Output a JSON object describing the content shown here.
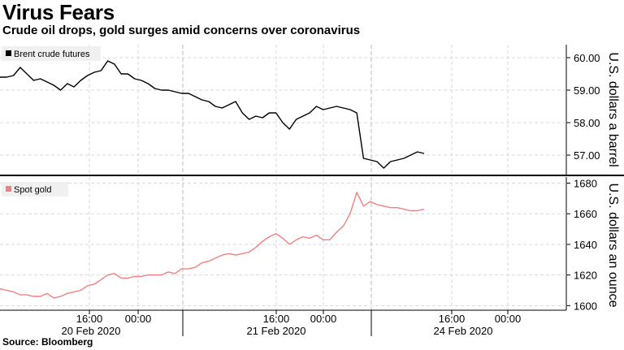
{
  "header": {
    "title": "Virus Fears",
    "subtitle": "Crude oil drops, gold surges amid concerns over coronavirus"
  },
  "footer": {
    "source": "Source: Bloomberg"
  },
  "colors": {
    "brent": "#000000",
    "gold": "#f08080",
    "grid": "#d9d9d9",
    "axis": "#000000"
  },
  "chart_data": [
    {
      "type": "line",
      "series": [
        {
          "name": "Brent crude futures",
          "x": [
            0,
            1,
            2,
            3,
            4,
            5,
            6,
            7,
            8,
            9,
            10,
            11,
            12,
            13,
            14,
            15,
            16,
            17,
            18,
            19,
            20,
            21,
            22,
            23,
            24,
            25,
            26,
            27,
            28,
            29,
            30,
            31,
            32,
            33,
            34,
            35,
            36,
            37,
            38,
            39,
            40,
            41,
            42,
            43,
            44,
            45,
            46,
            47,
            48,
            49,
            50,
            51,
            52,
            53,
            54,
            55,
            56,
            57,
            58,
            59,
            60,
            61,
            62,
            63
          ],
          "values": [
            59.4,
            59.4,
            59.45,
            59.7,
            59.5,
            59.3,
            59.35,
            59.25,
            59.15,
            59.0,
            59.2,
            59.1,
            59.3,
            59.45,
            59.55,
            59.6,
            59.9,
            59.8,
            59.5,
            59.5,
            59.35,
            59.3,
            59.2,
            59.05,
            59.0,
            59.0,
            58.95,
            58.9,
            58.9,
            58.8,
            58.7,
            58.65,
            58.5,
            58.45,
            58.55,
            58.65,
            58.3,
            58.1,
            58.2,
            58.15,
            58.3,
            58.3,
            58.0,
            57.8,
            58.1,
            58.2,
            58.3,
            58.5,
            58.4,
            58.45,
            58.5,
            58.45,
            58.4,
            58.3,
            56.9,
            56.85,
            56.8,
            56.6,
            56.8,
            56.85,
            56.9,
            57.0,
            57.1,
            57.05
          ]
        }
      ],
      "ylabel": "U.S. dollars a barrel",
      "y_ticks": [
        "57.00",
        "58.00",
        "59.00",
        "60.00"
      ],
      "ylim": [
        56.4,
        60.4
      ],
      "grid": true,
      "legend_position": "top-left"
    },
    {
      "type": "line",
      "series": [
        {
          "name": "Spot gold",
          "x": [
            0,
            1,
            2,
            3,
            4,
            5,
            6,
            7,
            8,
            9,
            10,
            11,
            12,
            13,
            14,
            15,
            16,
            17,
            18,
            19,
            20,
            21,
            22,
            23,
            24,
            25,
            26,
            27,
            28,
            29,
            30,
            31,
            32,
            33,
            34,
            35,
            36,
            37,
            38,
            39,
            40,
            41,
            42,
            43,
            44,
            45,
            46,
            47,
            48,
            49,
            50,
            51,
            52,
            53,
            54,
            55,
            56,
            57,
            58,
            59,
            60,
            61,
            62,
            63
          ],
          "values": [
            1611,
            1610,
            1609,
            1607,
            1607,
            1606,
            1606,
            1608,
            1605,
            1606,
            1608,
            1609,
            1610,
            1613,
            1614,
            1617,
            1620,
            1621,
            1618,
            1618,
            1619,
            1619,
            1620,
            1620,
            1620,
            1622,
            1621,
            1624,
            1624,
            1625,
            1628,
            1629,
            1631,
            1633,
            1634,
            1633,
            1634,
            1635,
            1638,
            1642,
            1645,
            1647,
            1644,
            1640,
            1643,
            1645,
            1644,
            1646,
            1643,
            1643,
            1648,
            1652,
            1660,
            1674,
            1665,
            1668,
            1666,
            1665,
            1664,
            1664,
            1663,
            1662,
            1662,
            1663
          ]
        }
      ],
      "ylabel": "U.S. dollars an ounce",
      "y_ticks": [
        "1600",
        "1620",
        "1640",
        "1660",
        "1680"
      ],
      "ylim": [
        1597,
        1684
      ],
      "grid": true,
      "legend_position": "top-left"
    }
  ],
  "x_axis": {
    "time_ticks": [
      "16:00",
      "00:00",
      "16:00",
      "00:00",
      "16:00",
      "00:00"
    ],
    "date_ticks": [
      "20 Feb 2020",
      "21 Feb 2020",
      "24 Feb 2020"
    ]
  }
}
